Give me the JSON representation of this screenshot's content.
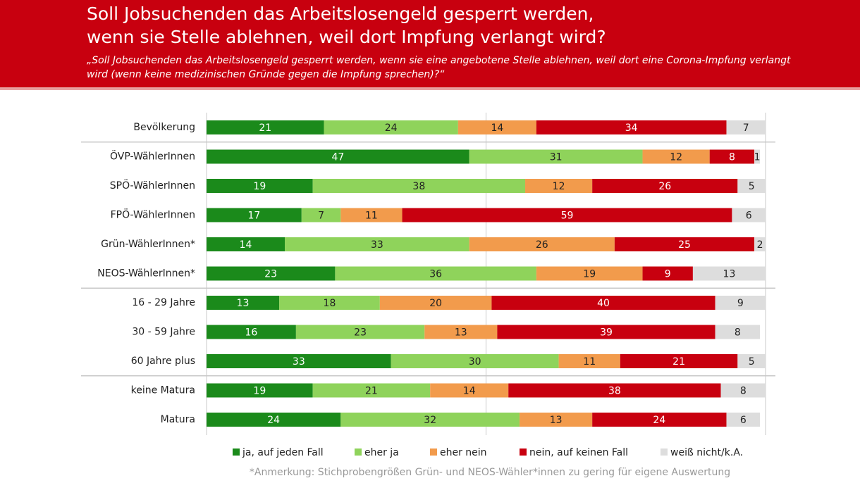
{
  "chart_data": {
    "type": "stacked-bar-horizontal",
    "title": [
      "Soll Jobsuchenden das Arbeitslosengeld gesperrt werden,",
      "wenn sie Stelle ablehnen, weil dort Impfung verlangt wird?"
    ],
    "subtitle": [
      "„Soll Jobsuchenden das Arbeitslosengeld gesperrt werden, wenn sie eine angebotene Stelle ablehnen, weil dort eine Corona-Impfung verlangt",
      "wird (wenn keine medizinischen Gründe gegen die Impfung sprechen)?“"
    ],
    "categories": [
      "Bevölkerung",
      "ÖVP-WählerInnen",
      "SPÖ-WählerInnen",
      "FPÖ-WählerInnen",
      "Grün-WählerInnen*",
      "NEOS-WählerInnen*",
      "16 - 29 Jahre",
      "30 - 59 Jahre",
      "60 Jahre plus",
      "keine Matura",
      "Matura"
    ],
    "series": [
      {
        "name": "ja, auf jeden Fall",
        "color": "#1b8a1b",
        "values": [
          21,
          47,
          19,
          17,
          14,
          23,
          13,
          16,
          33,
          19,
          24
        ]
      },
      {
        "name": "eher ja",
        "color": "#8fd35b",
        "values": [
          24,
          31,
          38,
          7,
          33,
          36,
          18,
          23,
          30,
          21,
          32
        ]
      },
      {
        "name": "eher nein",
        "color": "#f29b4c",
        "values": [
          14,
          12,
          12,
          11,
          26,
          19,
          20,
          13,
          11,
          14,
          13
        ]
      },
      {
        "name": "nein, auf keinen Fall",
        "color": "#c8000f",
        "values": [
          34,
          8,
          26,
          59,
          25,
          9,
          40,
          39,
          21,
          38,
          24
        ]
      },
      {
        "name": "weiß nicht/k.A.",
        "color": "#dddddd",
        "values": [
          7,
          1,
          5,
          6,
          2,
          13,
          9,
          8,
          5,
          8,
          6
        ]
      }
    ],
    "xlim": [
      0,
      100
    ],
    "xticks": [
      0,
      50,
      100
    ],
    "grid": true,
    "legend": "bottom",
    "note": "*Anmerkung: Stichprobengrößen Grün- und NEOS-Wähler*innen zu gering für eigene Auswertung"
  }
}
